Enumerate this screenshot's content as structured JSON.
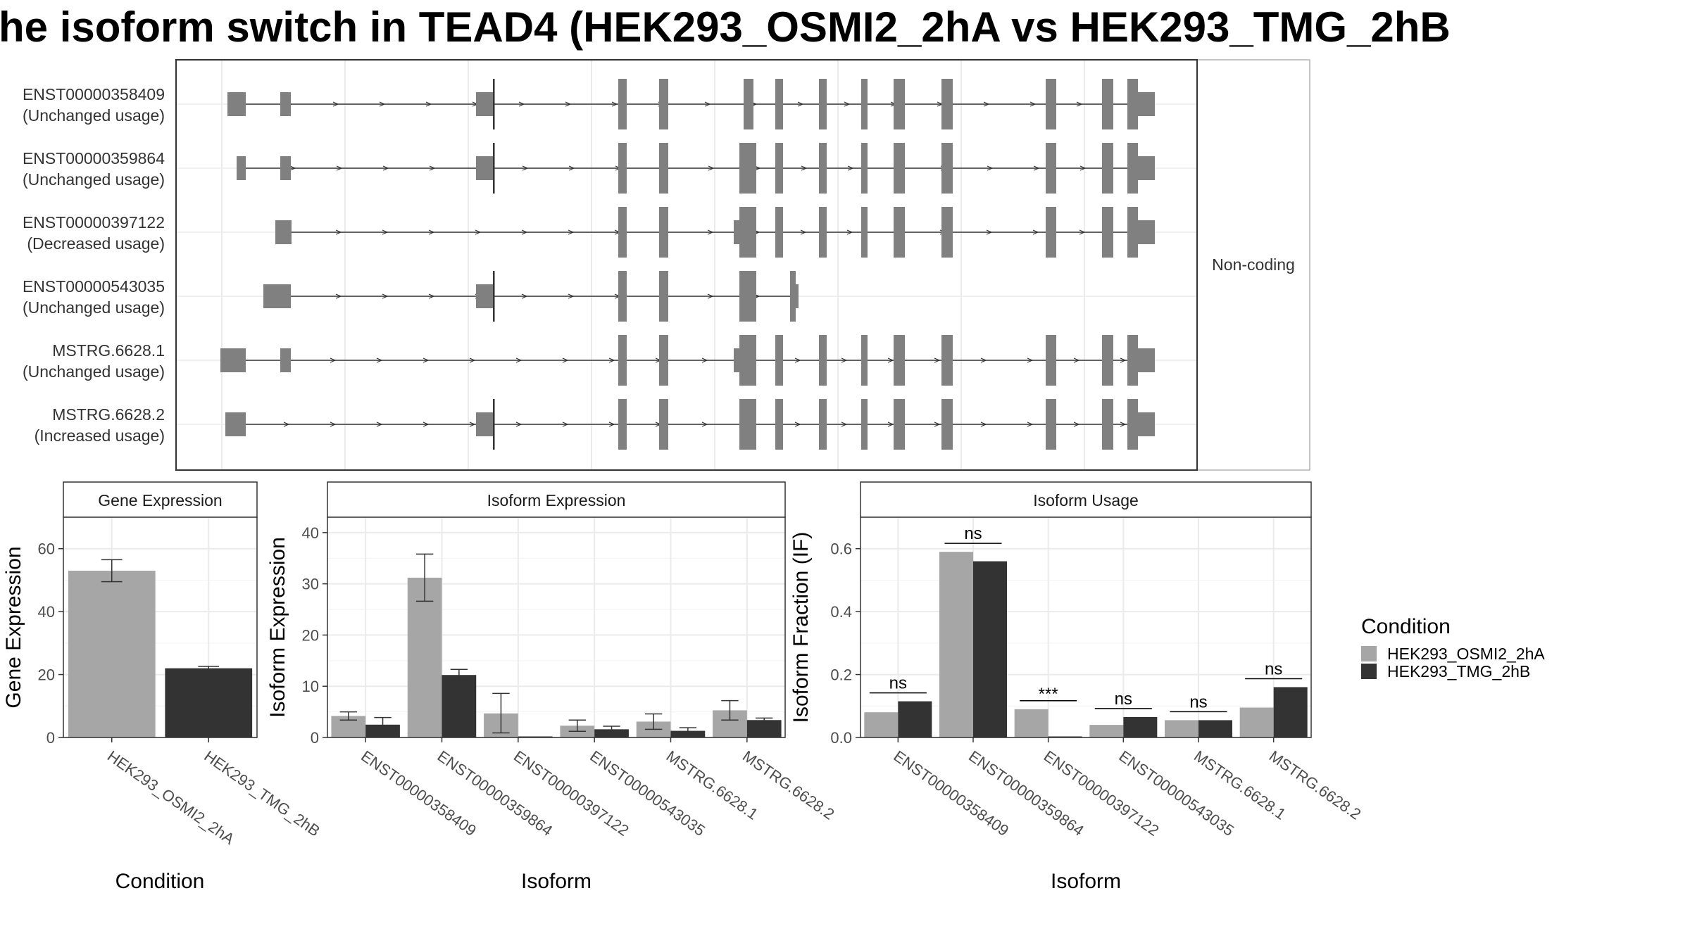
{
  "title": "he isoform switch in TEAD4 (HEK293_OSMI2_2hA vs HEK293_TMG_2hB",
  "colors": {
    "osmi": "#a6a6a6",
    "tmg": "#333333",
    "exon": "#808080",
    "grid": "#ebebeb",
    "border": "#333333"
  },
  "structure_panel": {
    "side_label": "Non-coding",
    "transcripts": [
      {
        "id": "ENST00000358409",
        "status": "(Unchanged usage)"
      },
      {
        "id": "ENST00000359864",
        "status": "(Unchanged usage)"
      },
      {
        "id": "ENST00000397122",
        "status": "(Decreased usage)"
      },
      {
        "id": "ENST00000543035",
        "status": "(Unchanged usage)"
      },
      {
        "id": "MSTRG.6628.1",
        "status": "(Unchanged usage)"
      },
      {
        "id": "MSTRG.6628.2",
        "status": "(Increased usage)"
      }
    ]
  },
  "legend": {
    "title": "Condition",
    "items": [
      {
        "label": "HEK293_OSMI2_2hA",
        "color": "#a6a6a6"
      },
      {
        "label": "HEK293_TMG_2hB",
        "color": "#333333"
      }
    ]
  },
  "chart_data": [
    {
      "type": "bar",
      "strip": "Gene Expression",
      "xlabel": "Condition",
      "ylabel": "Gene Expression",
      "ylim": [
        0,
        70
      ],
      "yticks": [
        0,
        20,
        40,
        60
      ],
      "categories": [
        "HEK293_OSMI2_2hA",
        "HEK293_TMG_2hB"
      ],
      "values": [
        53,
        22
      ],
      "errors": [
        [
          49.5,
          56.5
        ],
        [
          21.3,
          22.6
        ]
      ]
    },
    {
      "type": "bar",
      "strip": "Isoform Expression",
      "xlabel": "Isoform",
      "ylabel": "Isoform Expression",
      "ylim": [
        0,
        43
      ],
      "yticks": [
        0,
        10,
        20,
        30,
        40
      ],
      "categories": [
        "ENST00000358409",
        "ENST00000359864",
        "ENST00000397122",
        "ENST00000543035",
        "MSTRG.6628.1",
        "MSTRG.6628.2"
      ],
      "series": [
        {
          "name": "HEK293_OSMI2_2hA",
          "values": [
            4.2,
            31.2,
            4.7,
            2.3,
            3.1,
            5.3
          ],
          "errors": [
            [
              3.4,
              5.0
            ],
            [
              26.6,
              35.8
            ],
            [
              0.9,
              8.6
            ],
            [
              1.2,
              3.4
            ],
            [
              1.6,
              4.6
            ],
            [
              3.4,
              7.2
            ]
          ]
        },
        {
          "name": "HEK293_TMG_2hB",
          "values": [
            2.5,
            12.2,
            0,
            1.6,
            1.3,
            3.4
          ],
          "errors": [
            [
              1.0,
              3.9
            ],
            [
              11.2,
              13.3
            ],
            [
              0,
              0
            ],
            [
              1.0,
              2.2
            ],
            [
              0.7,
              1.9
            ],
            [
              3.0,
              3.8
            ]
          ]
        }
      ]
    },
    {
      "type": "bar",
      "strip": "Isoform Usage",
      "xlabel": "Isoform",
      "ylabel": "Isoform Fraction (IF)",
      "ylim": [
        0,
        0.7
      ],
      "yticks": [
        "0.0",
        "0.2",
        "0.4",
        "0.6"
      ],
      "categories": [
        "ENST00000358409",
        "ENST00000359864",
        "ENST00000397122",
        "ENST00000543035",
        "MSTRG.6628.1",
        "MSTRG.6628.2"
      ],
      "series": [
        {
          "name": "HEK293_OSMI2_2hA",
          "values": [
            0.08,
            0.59,
            0.09,
            0.04,
            0.055,
            0.095
          ]
        },
        {
          "name": "HEK293_TMG_2hB",
          "values": [
            0.115,
            0.56,
            0,
            0.065,
            0.055,
            0.16
          ]
        }
      ],
      "significance": [
        "ns",
        "ns",
        "***",
        "ns",
        "ns",
        "ns"
      ]
    }
  ]
}
